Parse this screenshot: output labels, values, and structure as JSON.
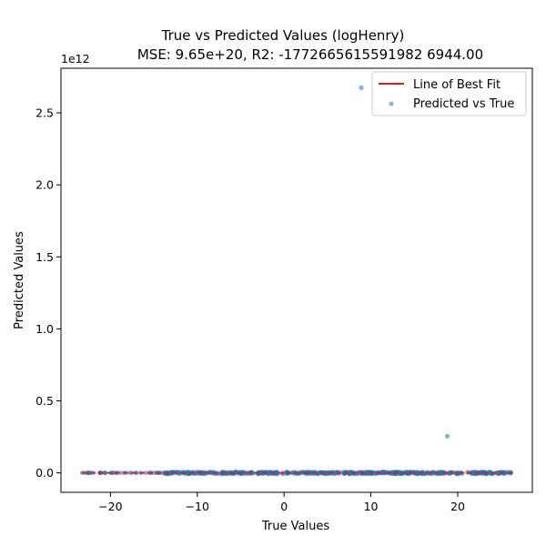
{
  "chart_data": {
    "type": "scatter",
    "title": "True vs Predicted Values (logHenry)",
    "subtitle": "MSE: 9.65e+20, R2: -1772665615591982 6944.00",
    "xlabel": "True Values",
    "ylabel": "Predicted Values",
    "y_offset_label": "1e12",
    "xlim": [
      -25.7,
      28.6
    ],
    "ylim": [
      -0.135,
      2.81
    ],
    "x_ticks": [
      -20,
      -10,
      0,
      10,
      20
    ],
    "x_tick_labels": [
      "−20",
      "−10",
      "0",
      "10",
      "20"
    ],
    "y_ticks": [
      0.0,
      0.5,
      1.0,
      1.5,
      2.0,
      2.5
    ],
    "y_tick_labels": [
      "0.0",
      "0.5",
      "1.0",
      "1.5",
      "2.0",
      "2.5"
    ],
    "grid": false,
    "legend_position": "top-right",
    "series": [
      {
        "name": "Line of Best Fit",
        "kind": "line",
        "color": "#e41a1c",
        "x": [
          -23.3,
          26.3
        ],
        "y": [
          0.0,
          0.0
        ]
      },
      {
        "name": "Predicted vs True",
        "kind": "scatter",
        "color": "#1f77b4",
        "outliers": [
          {
            "x": 8.9,
            "y": 2.675
          },
          {
            "x": 18.8,
            "y": 0.255
          }
        ],
        "dense_range_x": [
          -14.0,
          26.3
        ],
        "sparse_range_x": [
          -23.3,
          -14.0
        ],
        "y_near": 0.0
      }
    ]
  }
}
